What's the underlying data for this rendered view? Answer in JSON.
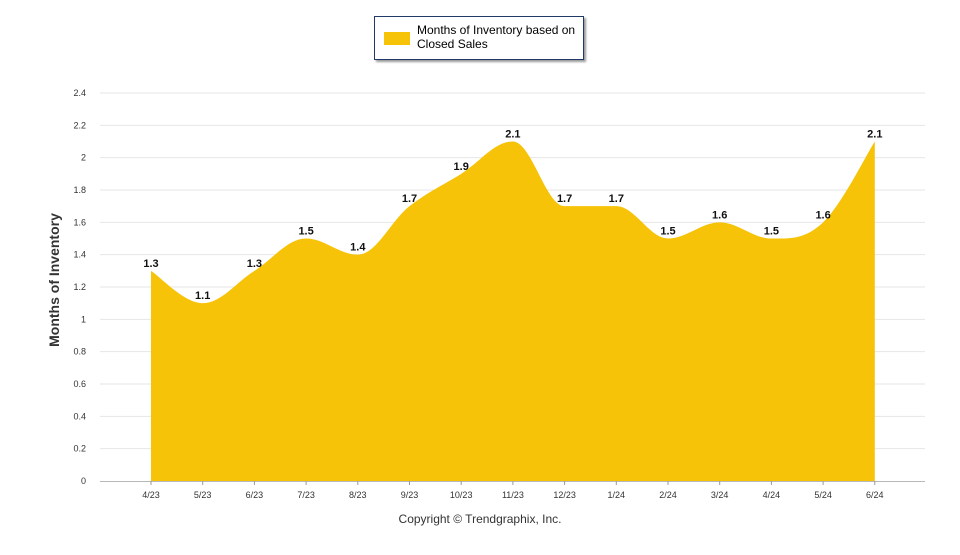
{
  "legend": {
    "label": "Months of Inventory based on Closed Sales"
  },
  "copyright": "Copyright © Trendgraphix, Inc.",
  "colors": {
    "area": "#F6C308",
    "grid": "#e6e6e6",
    "axis": "#333333"
  },
  "chart_data": {
    "type": "area",
    "title": "",
    "xlabel": "",
    "ylabel": "Months of Inventory",
    "ylim": [
      0,
      2.4
    ],
    "yticks": [
      0,
      0.2,
      0.4,
      0.6,
      0.8,
      1,
      1.2,
      1.4,
      1.6,
      1.8,
      2,
      2.2,
      2.4
    ],
    "ytick_labels": [
      "0",
      "0.2",
      "0.4",
      "0.6",
      "0.8",
      "1",
      "1.2",
      "1.4",
      "1.6",
      "1.8",
      "2",
      "2.2",
      "2.4"
    ],
    "grid": true,
    "legend_position": "top-center",
    "categories": [
      "4/23",
      "5/23",
      "6/23",
      "7/23",
      "8/23",
      "9/23",
      "10/23",
      "11/23",
      "12/23",
      "1/24",
      "2/24",
      "3/24",
      "4/24",
      "5/24",
      "6/24"
    ],
    "series": [
      {
        "name": "Months of Inventory based on Closed Sales",
        "values": [
          1.3,
          1.1,
          1.3,
          1.5,
          1.4,
          1.7,
          1.9,
          2.1,
          1.7,
          1.7,
          1.5,
          1.6,
          1.5,
          1.6,
          2.1
        ],
        "labels": [
          "1.3",
          "1.1",
          "1.3",
          "1.5",
          "1.4",
          "1.7",
          "1.9",
          "2.1",
          "1.7",
          "1.7",
          "1.5",
          "1.6",
          "1.5",
          "1.6",
          "2.1"
        ]
      }
    ]
  }
}
